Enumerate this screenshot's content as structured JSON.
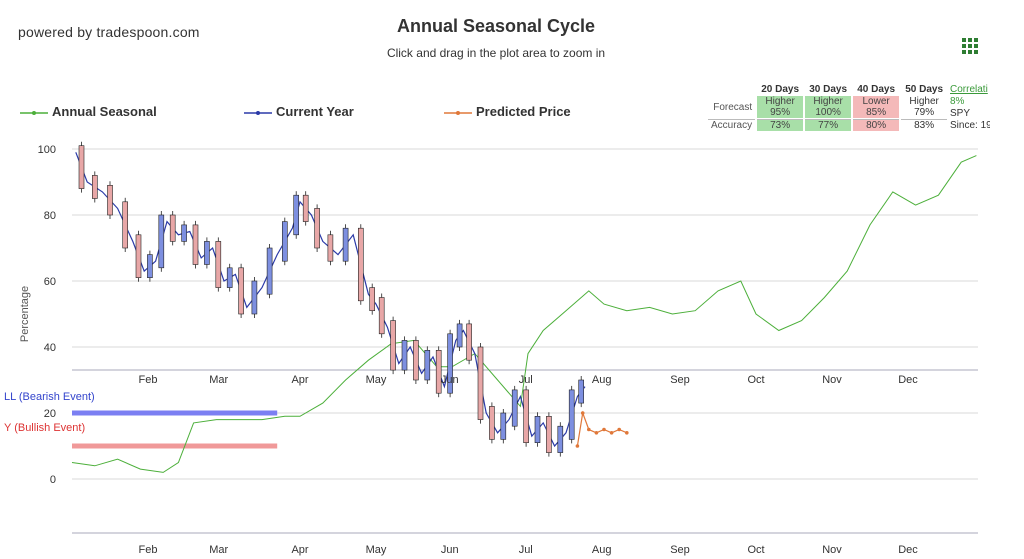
{
  "brand": "powered by tradespoon.com",
  "title": "Annual Seasonal Cycle",
  "subtitle": "Click and drag in the plot area to zoom in",
  "menu_icon": "grid-menu-icon",
  "legend": {
    "annual": "Annual Seasonal",
    "current": "Current Year",
    "predicted": "Predicted Price"
  },
  "colors": {
    "annual": "#4caf3a",
    "current": "#2b3aa8",
    "predicted": "#e0783a",
    "candle_up": "#7d8fe0",
    "candle_down": "#e8a7a7",
    "bearish": "#3344cc",
    "bullish": "#dd3333",
    "bearish_band": "#7b7ff2",
    "bullish_band": "#f09999"
  },
  "stats": {
    "headers": [
      "20 Days",
      "30 Days",
      "40 Days",
      "50 Days"
    ],
    "forecast_label": "Forecast",
    "accuracy_label": "Accuracy",
    "forecast": [
      {
        "dir": "Higher",
        "pct": "95%",
        "kind": "up"
      },
      {
        "dir": "Higher",
        "pct": "100%",
        "kind": "up"
      },
      {
        "dir": "Lower",
        "pct": "85%",
        "kind": "down"
      },
      {
        "dir": "Higher",
        "pct": "79%",
        "kind": "neutral"
      }
    ],
    "accuracy": [
      {
        "pct": "73%",
        "kind": "up"
      },
      {
        "pct": "77%",
        "kind": "up"
      },
      {
        "pct": "80%",
        "kind": "down"
      },
      {
        "pct": "83%",
        "kind": "neutral"
      }
    ]
  },
  "correlation": {
    "link": "Correlati",
    "value": "8%",
    "symbol": "SPY",
    "since": "Since: 19"
  },
  "events": {
    "bearish": "LL (Bearish Event)",
    "bullish": "Y (Bullish Event)"
  },
  "chart_data": {
    "type": "line",
    "ylabel": "Percentage",
    "ylim": [
      -15,
      100
    ],
    "yticks": [
      0,
      20,
      40,
      60,
      80,
      100
    ],
    "grid": true,
    "months": [
      "Feb",
      "Mar",
      "Apr",
      "May",
      "Jun",
      "Jul",
      "Aug",
      "Sep",
      "Oct",
      "Nov",
      "Dec"
    ],
    "month_positions": [
      1.0,
      1.93,
      3.0,
      4.0,
      4.97,
      5.97,
      6.97,
      8.0,
      9.0,
      10.0,
      11.0
    ],
    "series": [
      {
        "name": "Annual Seasonal",
        "kind": "line",
        "x": [
          0.0,
          0.3,
          0.6,
          0.9,
          1.2,
          1.4,
          1.6,
          1.9,
          2.2,
          2.5,
          2.8,
          3.0,
          3.3,
          3.6,
          3.9,
          4.2,
          4.5,
          4.8,
          5.0,
          5.3,
          5.6,
          5.9,
          6.0,
          6.2,
          6.5,
          6.8,
          7.0,
          7.3,
          7.6,
          7.9,
          8.2,
          8.5,
          8.8,
          9.0,
          9.3,
          9.6,
          9.9,
          10.2,
          10.5,
          10.8,
          11.1,
          11.4,
          11.7,
          11.9
        ],
        "y": [
          5,
          4,
          6,
          3,
          2,
          5,
          17,
          18,
          18,
          18,
          19,
          19,
          23,
          30,
          36,
          41,
          42,
          34,
          34,
          38,
          30,
          22,
          38,
          45,
          51,
          57,
          53,
          51,
          52,
          50,
          51,
          57,
          60,
          50,
          45,
          48,
          55,
          63,
          77,
          87,
          83,
          86,
          96,
          98
        ]
      },
      {
        "name": "Current Year",
        "kind": "line",
        "x": [
          0.05,
          0.2,
          0.4,
          0.6,
          0.8,
          0.95,
          1.1,
          1.25,
          1.4,
          1.55,
          1.7,
          1.85,
          2.0,
          2.15,
          2.3,
          2.5,
          2.7,
          2.9,
          3.0,
          3.15,
          3.3,
          3.5,
          3.7,
          3.9,
          4.0,
          4.15,
          4.3,
          4.45,
          4.6,
          4.75,
          4.9,
          5.05,
          5.15,
          5.3,
          5.45,
          5.6,
          5.75,
          5.9,
          6.05,
          6.2,
          6.35,
          6.5,
          6.65,
          6.75
        ],
        "y": [
          99,
          90,
          87,
          82,
          72,
          63,
          66,
          78,
          74,
          75,
          67,
          70,
          60,
          62,
          52,
          58,
          68,
          76,
          84,
          80,
          72,
          68,
          74,
          56,
          53,
          46,
          35,
          40,
          32,
          37,
          28,
          42,
          45,
          38,
          20,
          14,
          18,
          25,
          13,
          17,
          10,
          14,
          25,
          28
        ]
      },
      {
        "name": "Predicted Price",
        "kind": "line",
        "x": [
          6.65,
          6.72,
          6.8,
          6.9,
          7.0,
          7.1,
          7.2,
          7.3
        ],
        "y": [
          10,
          20,
          15,
          14,
          15,
          14,
          15,
          14
        ]
      }
    ],
    "events": [
      {
        "name": "Bearish Event",
        "y": 20,
        "x_start": 0.0,
        "x_end": 2.7
      },
      {
        "name": "Bullish Event",
        "y": 10,
        "x_start": 0.0,
        "x_end": 2.7
      }
    ]
  }
}
